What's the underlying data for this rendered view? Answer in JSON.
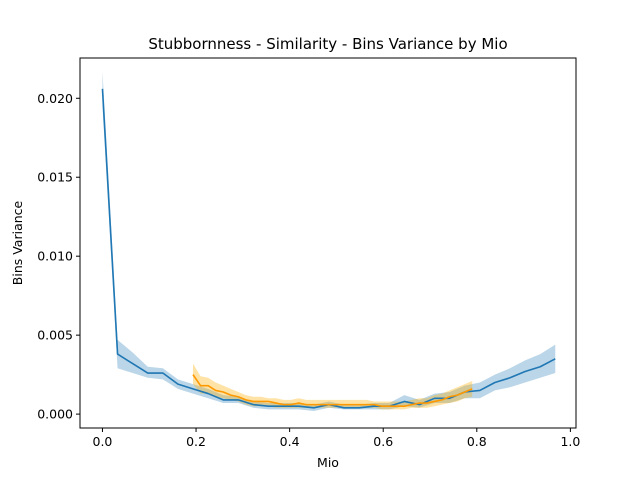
{
  "chart_data": {
    "type": "line",
    "title": "Stubbornness - Similarity - Bins Variance by Mio",
    "xlabel": "Mio",
    "ylabel": "Bins Variance",
    "xlim": [
      -0.048,
      1.012
    ],
    "ylim": [
      -0.00088,
      0.02255
    ],
    "xticks": [
      0.0,
      0.2,
      0.4,
      0.6,
      0.8,
      1.0
    ],
    "xtick_labels": [
      "0.0",
      "0.2",
      "0.4",
      "0.6",
      "0.8",
      "1.0"
    ],
    "yticks": [
      0.0,
      0.005,
      0.01,
      0.015,
      0.02
    ],
    "ytick_labels": [
      "0.000",
      "0.005",
      "0.010",
      "0.015",
      "0.020"
    ],
    "grid": false,
    "legend": "none",
    "series": [
      {
        "color": "#1f77b4",
        "band_color": "#1f77b4",
        "x": [
          0.0,
          0.0323,
          0.0645,
          0.0968,
          0.129,
          0.1613,
          0.1935,
          0.2258,
          0.2581,
          0.2903,
          0.3226,
          0.3548,
          0.3871,
          0.4194,
          0.4516,
          0.4839,
          0.5161,
          0.5484,
          0.5806,
          0.6129,
          0.6452,
          0.6774,
          0.7097,
          0.7419,
          0.7742,
          0.8065,
          0.8387,
          0.871,
          0.9032,
          0.9355,
          0.9677
        ],
        "y": [
          0.0206,
          0.0038,
          0.0032,
          0.0026,
          0.0026,
          0.0019,
          0.0016,
          0.0013,
          0.0009,
          0.0009,
          0.0006,
          0.0005,
          0.0005,
          0.0005,
          0.0004,
          0.0006,
          0.0004,
          0.0004,
          0.0005,
          0.0005,
          0.0008,
          0.0006,
          0.001,
          0.001,
          0.0014,
          0.0015,
          0.002,
          0.0023,
          0.0027,
          0.003,
          0.0035
        ],
        "lower": [
          0.0195,
          0.0029,
          0.0026,
          0.0023,
          0.0022,
          0.0016,
          0.0013,
          0.001,
          0.0007,
          0.0007,
          0.0004,
          0.0003,
          0.0003,
          0.0003,
          0.0002,
          0.0004,
          0.0003,
          0.0003,
          0.0003,
          0.0003,
          0.0005,
          0.0004,
          0.0007,
          0.0007,
          0.001,
          0.001,
          0.0015,
          0.0017,
          0.002,
          0.0023,
          0.0026
        ],
        "upper": [
          0.0217,
          0.0047,
          0.0039,
          0.003,
          0.0029,
          0.0022,
          0.0019,
          0.0016,
          0.0012,
          0.0011,
          0.0008,
          0.0007,
          0.0007,
          0.0007,
          0.0006,
          0.0008,
          0.0006,
          0.0006,
          0.0007,
          0.0007,
          0.0012,
          0.0009,
          0.0013,
          0.0014,
          0.0018,
          0.002,
          0.0025,
          0.0029,
          0.0034,
          0.0038,
          0.0044
        ]
      },
      {
        "color": "#ff9900",
        "band_color": "#ffb000",
        "x": [
          0.1935,
          0.2097,
          0.2258,
          0.2419,
          0.2581,
          0.2742,
          0.2903,
          0.3065,
          0.3226,
          0.3387,
          0.3548,
          0.371,
          0.3871,
          0.4032,
          0.4194,
          0.4355,
          0.4516,
          0.4677,
          0.4839,
          0.5,
          0.5161,
          0.5323,
          0.5484,
          0.5645,
          0.5806,
          0.5968,
          0.6129,
          0.629,
          0.6452,
          0.6613,
          0.6774,
          0.6935,
          0.7097,
          0.7258,
          0.7419,
          0.7581,
          0.7742,
          0.7903
        ],
        "y": [
          0.0025,
          0.0018,
          0.0018,
          0.0015,
          0.0014,
          0.0012,
          0.0011,
          0.0009,
          0.0008,
          0.0008,
          0.0008,
          0.0007,
          0.0006,
          0.0006,
          0.0007,
          0.0006,
          0.0006,
          0.0006,
          0.0006,
          0.0006,
          0.0006,
          0.0006,
          0.0006,
          0.0006,
          0.0006,
          0.0005,
          0.0005,
          0.0005,
          0.0005,
          0.0006,
          0.0007,
          0.0007,
          0.0008,
          0.0009,
          0.0011,
          0.0012,
          0.0014,
          0.0016
        ],
        "lower": [
          0.0019,
          0.0013,
          0.0013,
          0.0011,
          0.001,
          0.0009,
          0.0008,
          0.0006,
          0.0005,
          0.0005,
          0.0005,
          0.0004,
          0.0004,
          0.0004,
          0.0004,
          0.0004,
          0.0004,
          0.0004,
          0.0004,
          0.0004,
          0.0004,
          0.0004,
          0.0004,
          0.0004,
          0.0004,
          0.0003,
          0.0003,
          0.0003,
          0.0003,
          0.0004,
          0.0004,
          0.0004,
          0.0005,
          0.0006,
          0.0007,
          0.0008,
          0.001,
          0.0011
        ],
        "upper": [
          0.0032,
          0.0024,
          0.0023,
          0.002,
          0.0018,
          0.0016,
          0.0014,
          0.0012,
          0.0011,
          0.0011,
          0.001,
          0.001,
          0.0009,
          0.0009,
          0.001,
          0.0009,
          0.0009,
          0.0009,
          0.0009,
          0.0009,
          0.0009,
          0.0009,
          0.0009,
          0.0009,
          0.0008,
          0.0008,
          0.0008,
          0.0008,
          0.0008,
          0.0009,
          0.001,
          0.001,
          0.0012,
          0.0013,
          0.0015,
          0.0017,
          0.0019,
          0.0021
        ]
      }
    ]
  }
}
